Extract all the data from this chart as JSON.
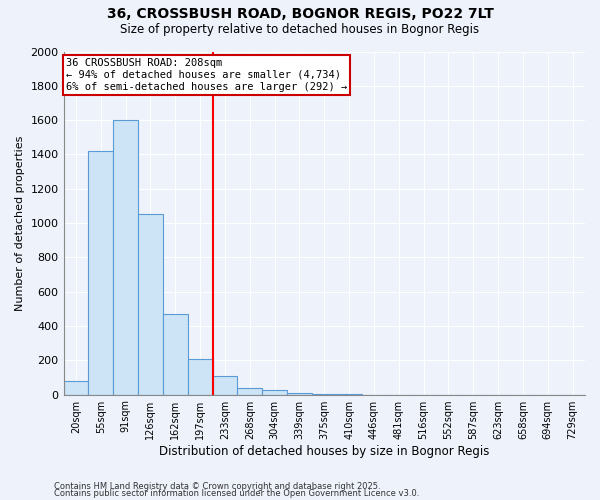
{
  "title1": "36, CROSSBUSH ROAD, BOGNOR REGIS, PO22 7LT",
  "title2": "Size of property relative to detached houses in Bognor Regis",
  "xlabel": "Distribution of detached houses by size in Bognor Regis",
  "ylabel": "Number of detached properties",
  "categories": [
    "20sqm",
    "55sqm",
    "91sqm",
    "126sqm",
    "162sqm",
    "197sqm",
    "233sqm",
    "268sqm",
    "304sqm",
    "339sqm",
    "375sqm",
    "410sqm",
    "446sqm",
    "481sqm",
    "516sqm",
    "552sqm",
    "587sqm",
    "623sqm",
    "658sqm",
    "694sqm",
    "729sqm"
  ],
  "values": [
    80,
    1420,
    1600,
    1050,
    470,
    210,
    110,
    40,
    25,
    10,
    5,
    5,
    0,
    0,
    0,
    0,
    0,
    0,
    0,
    0,
    0
  ],
  "bar_color": "#cce4f5",
  "bar_edge_color": "#5b9bd5",
  "red_line_x": 5.5,
  "annotation_line1": "36 CROSSBUSH ROAD: 208sqm",
  "annotation_line2": "← 94% of detached houses are smaller (4,734)",
  "annotation_line3": "6% of semi-detached houses are larger (292) →",
  "annotation_box_color": "#ffffff",
  "annotation_box_edge": "#cc0000",
  "footer1": "Contains HM Land Registry data © Crown copyright and database right 2025.",
  "footer2": "Contains public sector information licensed under the Open Government Licence v3.0.",
  "background_color": "#eef2fb",
  "ylim": [
    0,
    2000
  ],
  "yticks": [
    0,
    200,
    400,
    600,
    800,
    1000,
    1200,
    1400,
    1600,
    1800,
    2000
  ]
}
